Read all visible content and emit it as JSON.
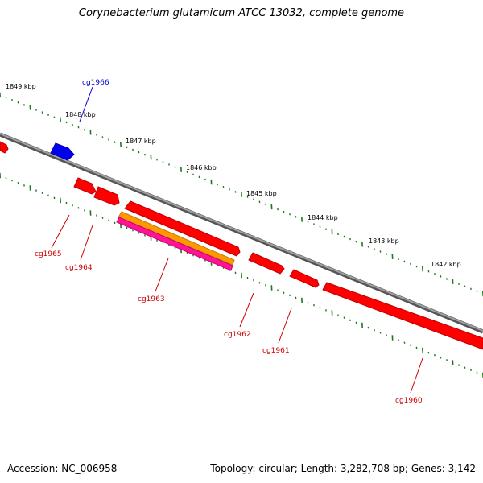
{
  "title": "Corynebacterium glutamicum ATCC 13032, complete genome",
  "footer": {
    "accession": "Accession: NC_006958",
    "topology": "Topology: circular; Length: 3,282,708 bp; Genes: 3,142"
  },
  "colors": {
    "backbone": "#808080",
    "tick": "#1a7a1a",
    "gene_forward": "#0000ff",
    "gene_reverse": "#ff0000",
    "label_forward": "#0000cc",
    "label_reverse": "#cc0000",
    "feature_orange": "#ff9900",
    "feature_magenta": "#ff1493"
  },
  "scale_labels": [
    "1849 kbp",
    "1848 kbp",
    "1847 kbp",
    "1846 kbp",
    "1845 kbp",
    "1844 kbp",
    "1843 kbp",
    "1842 kbp"
  ],
  "genes": [
    {
      "id": "cg1966",
      "label": "cg1966",
      "strand": "forward"
    },
    {
      "id": "cg1965",
      "label": "cg1965",
      "strand": "reverse"
    },
    {
      "id": "cg1964",
      "label": "cg1964",
      "strand": "reverse"
    },
    {
      "id": "cg1963",
      "label": "cg1963",
      "strand": "reverse"
    },
    {
      "id": "cg1962",
      "label": "cg1962",
      "strand": "reverse"
    },
    {
      "id": "cg1961",
      "label": "cg1961",
      "strand": "reverse"
    },
    {
      "id": "cg1960",
      "label": "cg1960",
      "strand": "reverse"
    }
  ]
}
